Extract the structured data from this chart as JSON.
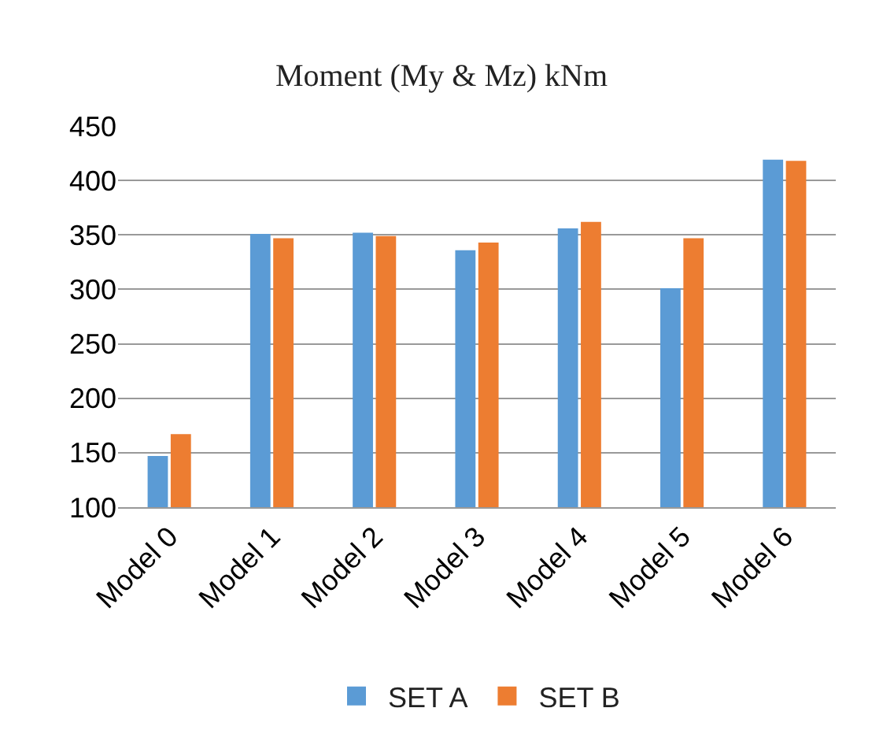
{
  "chart_data": {
    "type": "bar",
    "title": "Moment (My & Mz) kNm",
    "categories": [
      "Model 0",
      "Model 1",
      "Model 2",
      "Model 3",
      "Model 4",
      "Model 5",
      "Model 6"
    ],
    "series": [
      {
        "name": "SET A",
        "color": "#5b9bd5",
        "values": [
          147,
          351,
          352,
          336,
          356,
          301,
          419
        ]
      },
      {
        "name": "SET B",
        "color": "#ed7d31",
        "values": [
          167,
          347,
          349,
          343,
          362,
          347,
          418
        ]
      }
    ],
    "ylim": [
      100,
      450
    ],
    "yticks": [
      100,
      150,
      200,
      250,
      300,
      350,
      400,
      450
    ],
    "grid": "y",
    "legend": "bottom"
  }
}
